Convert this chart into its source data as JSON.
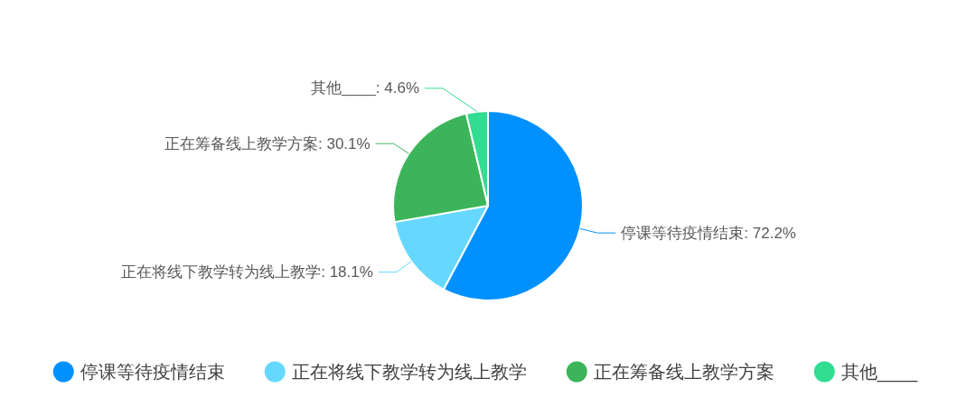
{
  "chart_data": {
    "type": "pie",
    "categories": [
      "停课等待疫情结束",
      "正在将线下教学转为线上教学",
      "正在筹备线上教学方案",
      "其他____"
    ],
    "values": [
      72.2,
      18.1,
      30.1,
      4.6
    ],
    "colors": [
      "#0091ff",
      "#66d8ff",
      "#3cb55a",
      "#32dc90"
    ],
    "value_labels": [
      "停课等待疫情结束: 72.2%",
      "正在将线下教学转为线上教学: 18.1%",
      "正在筹备线上教学方案: 30.1%",
      "其他____: 4.6%"
    ],
    "legend": "bottom"
  }
}
